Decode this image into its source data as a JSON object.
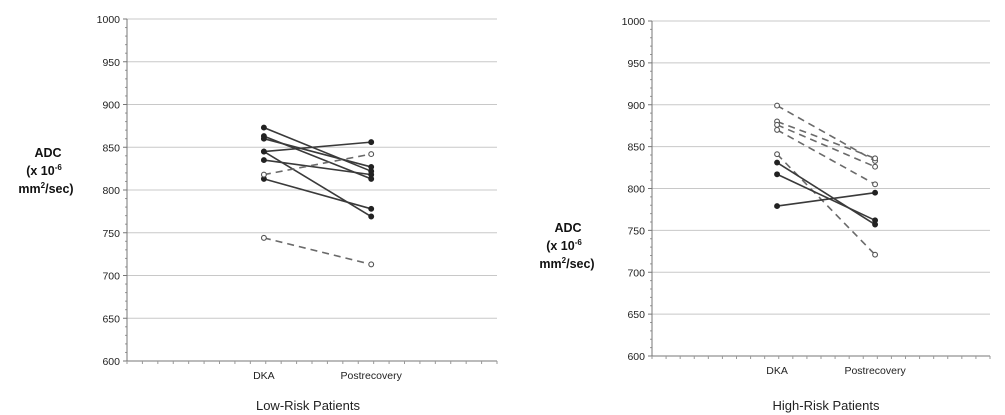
{
  "chart_data": [
    {
      "type": "line",
      "title": "Low-Risk Patients",
      "ylabel": {
        "line1": "ADC",
        "line2_pre": "(x 10",
        "line2_sup": "-6",
        "line3_pre": "mm",
        "line3_sup": "2",
        "line3_post": "/sec)"
      },
      "categories": [
        "DKA",
        "Postrecovery"
      ],
      "ylim": [
        600,
        1000
      ],
      "yticks": [
        600,
        650,
        700,
        750,
        800,
        850,
        900,
        950,
        1000
      ],
      "grid": true,
      "series": [
        {
          "values": [
            873,
            822
          ],
          "style": "solid"
        },
        {
          "values": [
            863,
            813
          ],
          "style": "solid"
        },
        {
          "values": [
            860,
            827
          ],
          "style": "solid"
        },
        {
          "values": [
            845,
            769
          ],
          "style": "solid"
        },
        {
          "values": [
            845,
            856
          ],
          "style": "solid"
        },
        {
          "values": [
            835,
            818
          ],
          "style": "solid"
        },
        {
          "values": [
            813,
            778
          ],
          "style": "solid"
        },
        {
          "values": [
            818,
            842
          ],
          "style": "dashed"
        },
        {
          "values": [
            744,
            713
          ],
          "style": "dashed"
        }
      ]
    },
    {
      "type": "line",
      "title": "High-Risk Patients",
      "ylabel": {
        "line1": "ADC",
        "line2_pre": "(x 10",
        "line2_sup": "-6",
        "line3_pre": "mm",
        "line3_sup": "2",
        "line3_post": "/sec)"
      },
      "categories": [
        "DKA",
        "Postrecovery"
      ],
      "ylim": [
        600,
        1000
      ],
      "yticks": [
        600,
        650,
        700,
        750,
        800,
        850,
        900,
        950,
        1000
      ],
      "grid": true,
      "series": [
        {
          "values": [
            899,
            833
          ],
          "style": "dashed"
        },
        {
          "values": [
            880,
            836
          ],
          "style": "dashed"
        },
        {
          "values": [
            876,
            826
          ],
          "style": "dashed"
        },
        {
          "values": [
            870,
            805
          ],
          "style": "dashed"
        },
        {
          "values": [
            841,
            721
          ],
          "style": "dashed"
        },
        {
          "values": [
            831,
            757
          ],
          "style": "solid"
        },
        {
          "values": [
            817,
            762
          ],
          "style": "solid"
        },
        {
          "values": [
            779,
            795
          ],
          "style": "solid"
        }
      ]
    }
  ]
}
